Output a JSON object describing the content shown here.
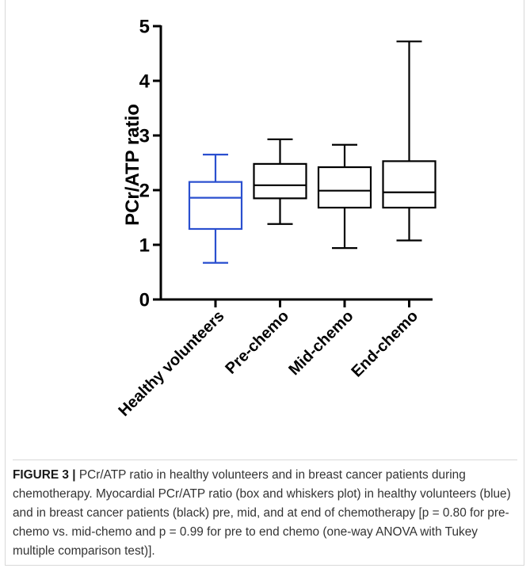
{
  "chart_data": {
    "type": "box",
    "ylabel": "PCr/ATP ratio",
    "xlabel": "",
    "ylim": [
      0,
      5
    ],
    "yticks": [
      0,
      1,
      2,
      3,
      4,
      5
    ],
    "grid": false,
    "categories": [
      "Healthy volunteers",
      "Pre-chemo",
      "Mid-chemo",
      "End-chemo"
    ],
    "boxes": [
      {
        "category": "Healthy volunteers",
        "min": 0.67,
        "q1": 1.29,
        "median": 1.86,
        "q3": 2.15,
        "max": 2.65,
        "color": "#2a4fcf"
      },
      {
        "category": "Pre-chemo",
        "min": 1.38,
        "q1": 1.85,
        "median": 2.09,
        "q3": 2.48,
        "max": 2.93,
        "color": "#000000"
      },
      {
        "category": "Mid-chemo",
        "min": 0.94,
        "q1": 1.68,
        "median": 1.99,
        "q3": 2.42,
        "max": 2.83,
        "color": "#000000"
      },
      {
        "category": "End-chemo",
        "min": 1.08,
        "q1": 1.68,
        "median": 1.96,
        "q3": 2.53,
        "max": 4.72,
        "color": "#000000"
      }
    ]
  },
  "caption": {
    "label": "FIGURE 3 |",
    "text": " PCr/ATP ratio in healthy volunteers and in breast cancer patients during chemotherapy. Myocardial PCr/ATP ratio (box and whiskers plot) in healthy volunteers (blue) and in breast cancer patients (black) pre, mid, and at end of chemotherapy [p = 0.80 for pre-chemo vs. mid-chemo and p = 0.99 for pre to end chemo (one-way ANOVA with Tukey multiple comparison test)]."
  }
}
